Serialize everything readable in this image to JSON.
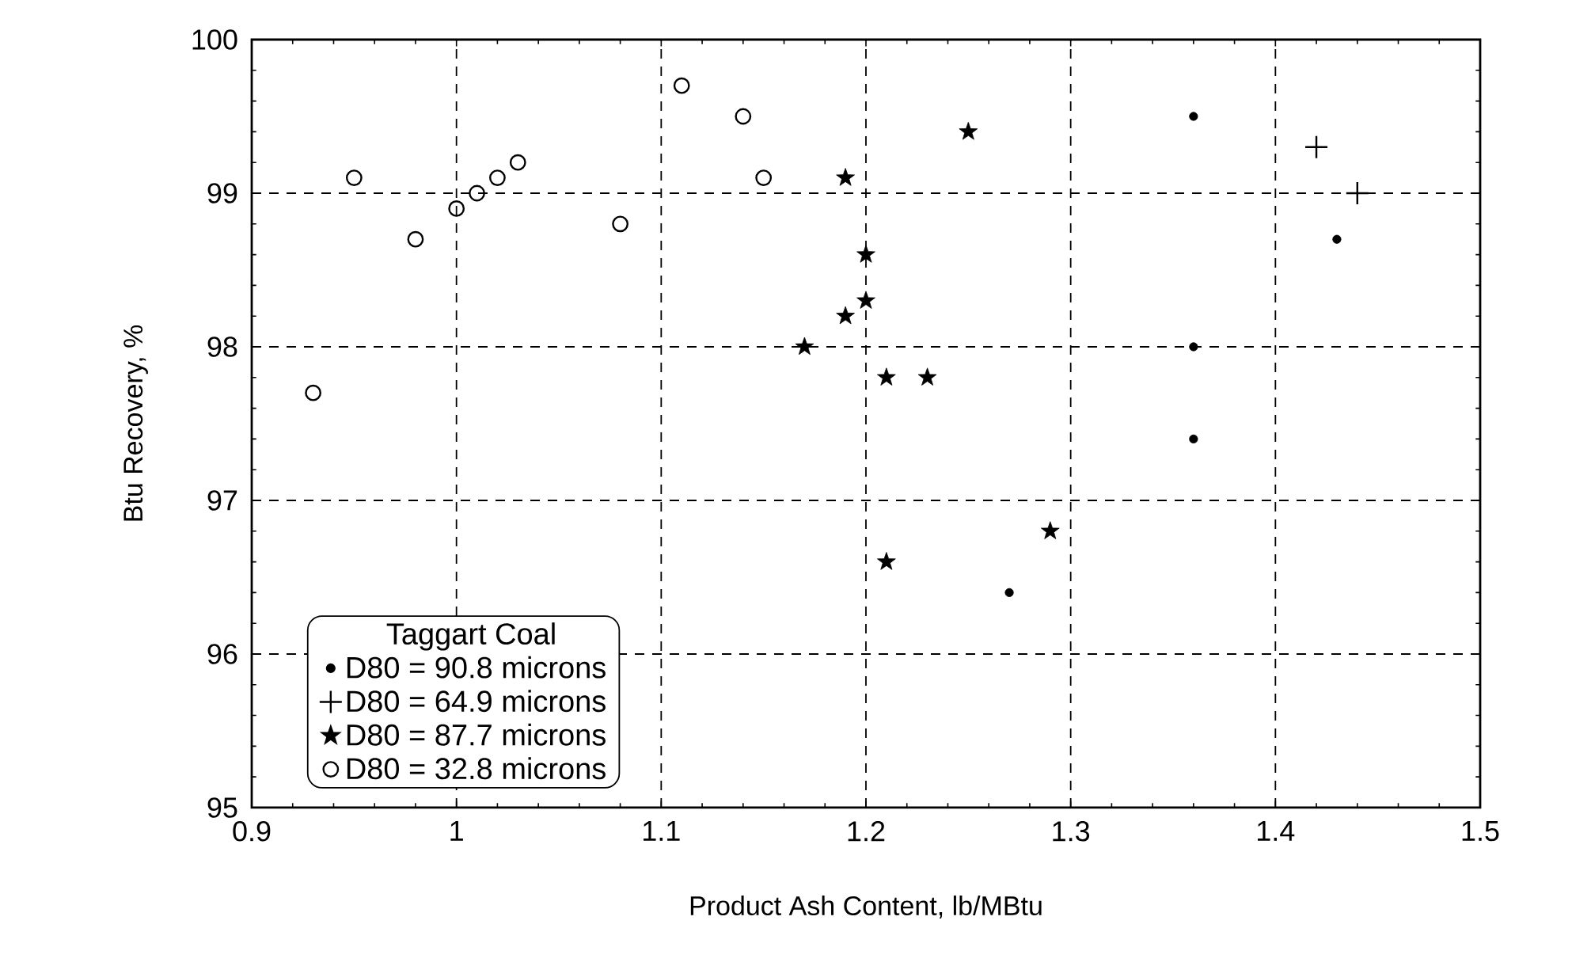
{
  "chart_data": {
    "type": "scatter",
    "xlabel": "Product Ash Content, lb/MBtu",
    "ylabel": "Btu Recovery, %",
    "legend_title": "Taggart Coal",
    "xlim": [
      0.9,
      1.5
    ],
    "xticks": [
      0.9,
      1,
      1.1,
      1.2,
      1.3,
      1.4,
      1.5
    ],
    "ylim": [
      95,
      100
    ],
    "yticks": [
      95,
      96,
      97,
      98,
      99,
      100
    ],
    "grid": true,
    "legend": "bottom left",
    "series": [
      {
        "name": "D80 = 90.8 microns",
        "color": "#000000",
        "marker": "dot",
        "x": [
          1.36,
          1.43,
          1.36,
          1.36,
          1.27
        ],
        "values": [
          99.5,
          98.7,
          98.0,
          97.4,
          96.4
        ]
      },
      {
        "name": "D80 = 64.9 microns",
        "color": "#000000",
        "marker": "cross",
        "x": [
          1.42,
          1.44
        ],
        "values": [
          99.3,
          99.0
        ]
      },
      {
        "name": "D80 = 87.7 microns",
        "color": "#000000",
        "marker": "star",
        "x": [
          1.19,
          1.25,
          1.2,
          1.2,
          1.19,
          1.17,
          1.21,
          1.23,
          1.21,
          1.29
        ],
        "values": [
          99.1,
          99.4,
          98.6,
          98.3,
          98.2,
          98.0,
          97.8,
          97.8,
          96.6,
          96.8
        ]
      },
      {
        "name": "D80 = 32.8 microns",
        "color": "#000000",
        "marker": "circle",
        "x": [
          0.93,
          0.95,
          0.98,
          1.0,
          1.01,
          1.02,
          1.03,
          1.08,
          1.11,
          1.14,
          1.15
        ],
        "values": [
          97.7,
          99.1,
          98.7,
          98.9,
          99.0,
          99.1,
          99.2,
          98.8,
          99.7,
          99.5,
          99.1
        ]
      }
    ]
  }
}
